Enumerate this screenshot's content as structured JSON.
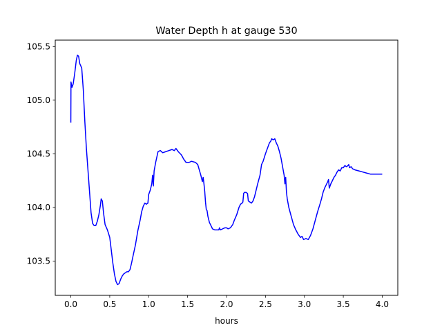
{
  "chart_data": {
    "type": "line",
    "title": "Water Depth h at gauge 530",
    "xlabel": "hours",
    "ylabel": "",
    "xlim": [
      -0.2,
      4.2
    ],
    "ylim": [
      103.18,
      105.56
    ],
    "xticks": [
      0.0,
      0.5,
      1.0,
      1.5,
      2.0,
      2.5,
      3.0,
      3.5,
      4.0
    ],
    "xtick_labels": [
      "0.0",
      "0.5",
      "1.0",
      "1.5",
      "2.0",
      "2.5",
      "3.0",
      "3.5",
      "4.0"
    ],
    "yticks": [
      103.5,
      104.0,
      104.5,
      105.0,
      105.5
    ],
    "ytick_labels": [
      "103.5",
      "104.0",
      "104.5",
      "105.0",
      "105.5"
    ],
    "grid": false,
    "legend": "none",
    "series": [
      {
        "color": "#0000ff",
        "points": [
          [
            0.0,
            104.79
          ],
          [
            0.002,
            105.17
          ],
          [
            0.015,
            105.12
          ],
          [
            0.03,
            105.15
          ],
          [
            0.05,
            105.25
          ],
          [
            0.07,
            105.37
          ],
          [
            0.085,
            105.42
          ],
          [
            0.1,
            105.41
          ],
          [
            0.115,
            105.34
          ],
          [
            0.14,
            105.3
          ],
          [
            0.16,
            105.1
          ],
          [
            0.18,
            104.8
          ],
          [
            0.2,
            104.55
          ],
          [
            0.22,
            104.35
          ],
          [
            0.24,
            104.15
          ],
          [
            0.26,
            103.95
          ],
          [
            0.28,
            103.85
          ],
          [
            0.3,
            103.83
          ],
          [
            0.32,
            103.83
          ],
          [
            0.34,
            103.87
          ],
          [
            0.36,
            103.93
          ],
          [
            0.38,
            104.02
          ],
          [
            0.39,
            104.08
          ],
          [
            0.405,
            104.06
          ],
          [
            0.42,
            103.95
          ],
          [
            0.44,
            103.84
          ],
          [
            0.47,
            103.79
          ],
          [
            0.5,
            103.72
          ],
          [
            0.52,
            103.6
          ],
          [
            0.54,
            103.48
          ],
          [
            0.56,
            103.38
          ],
          [
            0.58,
            103.31
          ],
          [
            0.6,
            103.28
          ],
          [
            0.62,
            103.29
          ],
          [
            0.64,
            103.33
          ],
          [
            0.66,
            103.36
          ],
          [
            0.68,
            103.38
          ],
          [
            0.7,
            103.39
          ],
          [
            0.72,
            103.4
          ],
          [
            0.74,
            103.4
          ],
          [
            0.76,
            103.42
          ],
          [
            0.78,
            103.48
          ],
          [
            0.8,
            103.55
          ],
          [
            0.83,
            103.65
          ],
          [
            0.86,
            103.78
          ],
          [
            0.89,
            103.88
          ],
          [
            0.91,
            103.96
          ],
          [
            0.93,
            104.01
          ],
          [
            0.95,
            104.04
          ],
          [
            0.97,
            104.03
          ],
          [
            0.99,
            104.04
          ],
          [
            1.0,
            104.12
          ],
          [
            1.02,
            104.16
          ],
          [
            1.04,
            104.22
          ],
          [
            1.05,
            104.3
          ],
          [
            1.06,
            104.2
          ],
          [
            1.07,
            104.34
          ],
          [
            1.09,
            104.42
          ],
          [
            1.12,
            104.52
          ],
          [
            1.15,
            104.53
          ],
          [
            1.18,
            104.51
          ],
          [
            1.22,
            104.52
          ],
          [
            1.26,
            104.53
          ],
          [
            1.3,
            104.54
          ],
          [
            1.33,
            104.53
          ],
          [
            1.35,
            104.55
          ],
          [
            1.38,
            104.52
          ],
          [
            1.42,
            104.49
          ],
          [
            1.45,
            104.45
          ],
          [
            1.48,
            104.42
          ],
          [
            1.52,
            104.42
          ],
          [
            1.55,
            104.43
          ],
          [
            1.6,
            104.42
          ],
          [
            1.63,
            104.4
          ],
          [
            1.65,
            104.35
          ],
          [
            1.67,
            104.3
          ],
          [
            1.69,
            104.24
          ],
          [
            1.7,
            104.28
          ],
          [
            1.71,
            104.22
          ],
          [
            1.72,
            104.15
          ],
          [
            1.73,
            104.05
          ],
          [
            1.74,
            103.98
          ],
          [
            1.75,
            103.97
          ],
          [
            1.76,
            103.92
          ],
          [
            1.78,
            103.86
          ],
          [
            1.8,
            103.83
          ],
          [
            1.82,
            103.8
          ],
          [
            1.85,
            103.79
          ],
          [
            1.87,
            103.79
          ],
          [
            1.9,
            103.79
          ],
          [
            1.91,
            103.81
          ],
          [
            1.92,
            103.79
          ],
          [
            1.95,
            103.8
          ],
          [
            1.98,
            103.81
          ],
          [
            2.0,
            103.81
          ],
          [
            2.02,
            103.8
          ],
          [
            2.05,
            103.81
          ],
          [
            2.08,
            103.84
          ],
          [
            2.1,
            103.88
          ],
          [
            2.13,
            103.93
          ],
          [
            2.16,
            104.0
          ],
          [
            2.18,
            104.03
          ],
          [
            2.2,
            104.04
          ],
          [
            2.21,
            104.05
          ],
          [
            2.22,
            104.13
          ],
          [
            2.23,
            104.14
          ],
          [
            2.25,
            104.14
          ],
          [
            2.27,
            104.13
          ],
          [
            2.28,
            104.06
          ],
          [
            2.3,
            104.05
          ],
          [
            2.32,
            104.04
          ],
          [
            2.34,
            104.06
          ],
          [
            2.36,
            104.1
          ],
          [
            2.38,
            104.16
          ],
          [
            2.4,
            104.22
          ],
          [
            2.43,
            104.3
          ],
          [
            2.45,
            104.4
          ],
          [
            2.47,
            104.43
          ],
          [
            2.5,
            104.5
          ],
          [
            2.52,
            104.54
          ],
          [
            2.55,
            104.6
          ],
          [
            2.57,
            104.62
          ],
          [
            2.58,
            104.64
          ],
          [
            2.6,
            104.63
          ],
          [
            2.62,
            104.64
          ],
          [
            2.64,
            104.6
          ],
          [
            2.66,
            104.57
          ],
          [
            2.68,
            104.52
          ],
          [
            2.7,
            104.46
          ],
          [
            2.72,
            104.38
          ],
          [
            2.74,
            104.3
          ],
          [
            2.75,
            104.22
          ],
          [
            2.76,
            104.28
          ],
          [
            2.77,
            104.14
          ],
          [
            2.78,
            104.08
          ],
          [
            2.8,
            104.0
          ],
          [
            2.83,
            103.92
          ],
          [
            2.86,
            103.84
          ],
          [
            2.89,
            103.79
          ],
          [
            2.92,
            103.75
          ],
          [
            2.95,
            103.72
          ],
          [
            2.97,
            103.73
          ],
          [
            2.99,
            103.7
          ],
          [
            3.02,
            103.71
          ],
          [
            3.05,
            103.7
          ],
          [
            3.08,
            103.74
          ],
          [
            3.11,
            103.8
          ],
          [
            3.14,
            103.88
          ],
          [
            3.17,
            103.96
          ],
          [
            3.2,
            104.03
          ],
          [
            3.22,
            104.08
          ],
          [
            3.24,
            104.14
          ],
          [
            3.26,
            104.18
          ],
          [
            3.28,
            104.21
          ],
          [
            3.3,
            104.24
          ],
          [
            3.31,
            104.26
          ],
          [
            3.32,
            104.18
          ],
          [
            3.34,
            104.22
          ],
          [
            3.36,
            104.25
          ],
          [
            3.38,
            104.28
          ],
          [
            3.4,
            104.3
          ],
          [
            3.42,
            104.33
          ],
          [
            3.44,
            104.35
          ],
          [
            3.46,
            104.34
          ],
          [
            3.48,
            104.37
          ],
          [
            3.5,
            104.37
          ],
          [
            3.52,
            104.39
          ],
          [
            3.54,
            104.38
          ],
          [
            3.56,
            104.39
          ],
          [
            3.57,
            104.4
          ],
          [
            3.58,
            104.37
          ],
          [
            3.6,
            104.38
          ],
          [
            3.62,
            104.36
          ],
          [
            3.65,
            104.35
          ],
          [
            3.7,
            104.34
          ],
          [
            3.75,
            104.33
          ],
          [
            3.8,
            104.32
          ],
          [
            3.85,
            104.31
          ],
          [
            3.9,
            104.31
          ],
          [
            3.95,
            104.31
          ],
          [
            4.0,
            104.31
          ]
        ]
      }
    ]
  }
}
